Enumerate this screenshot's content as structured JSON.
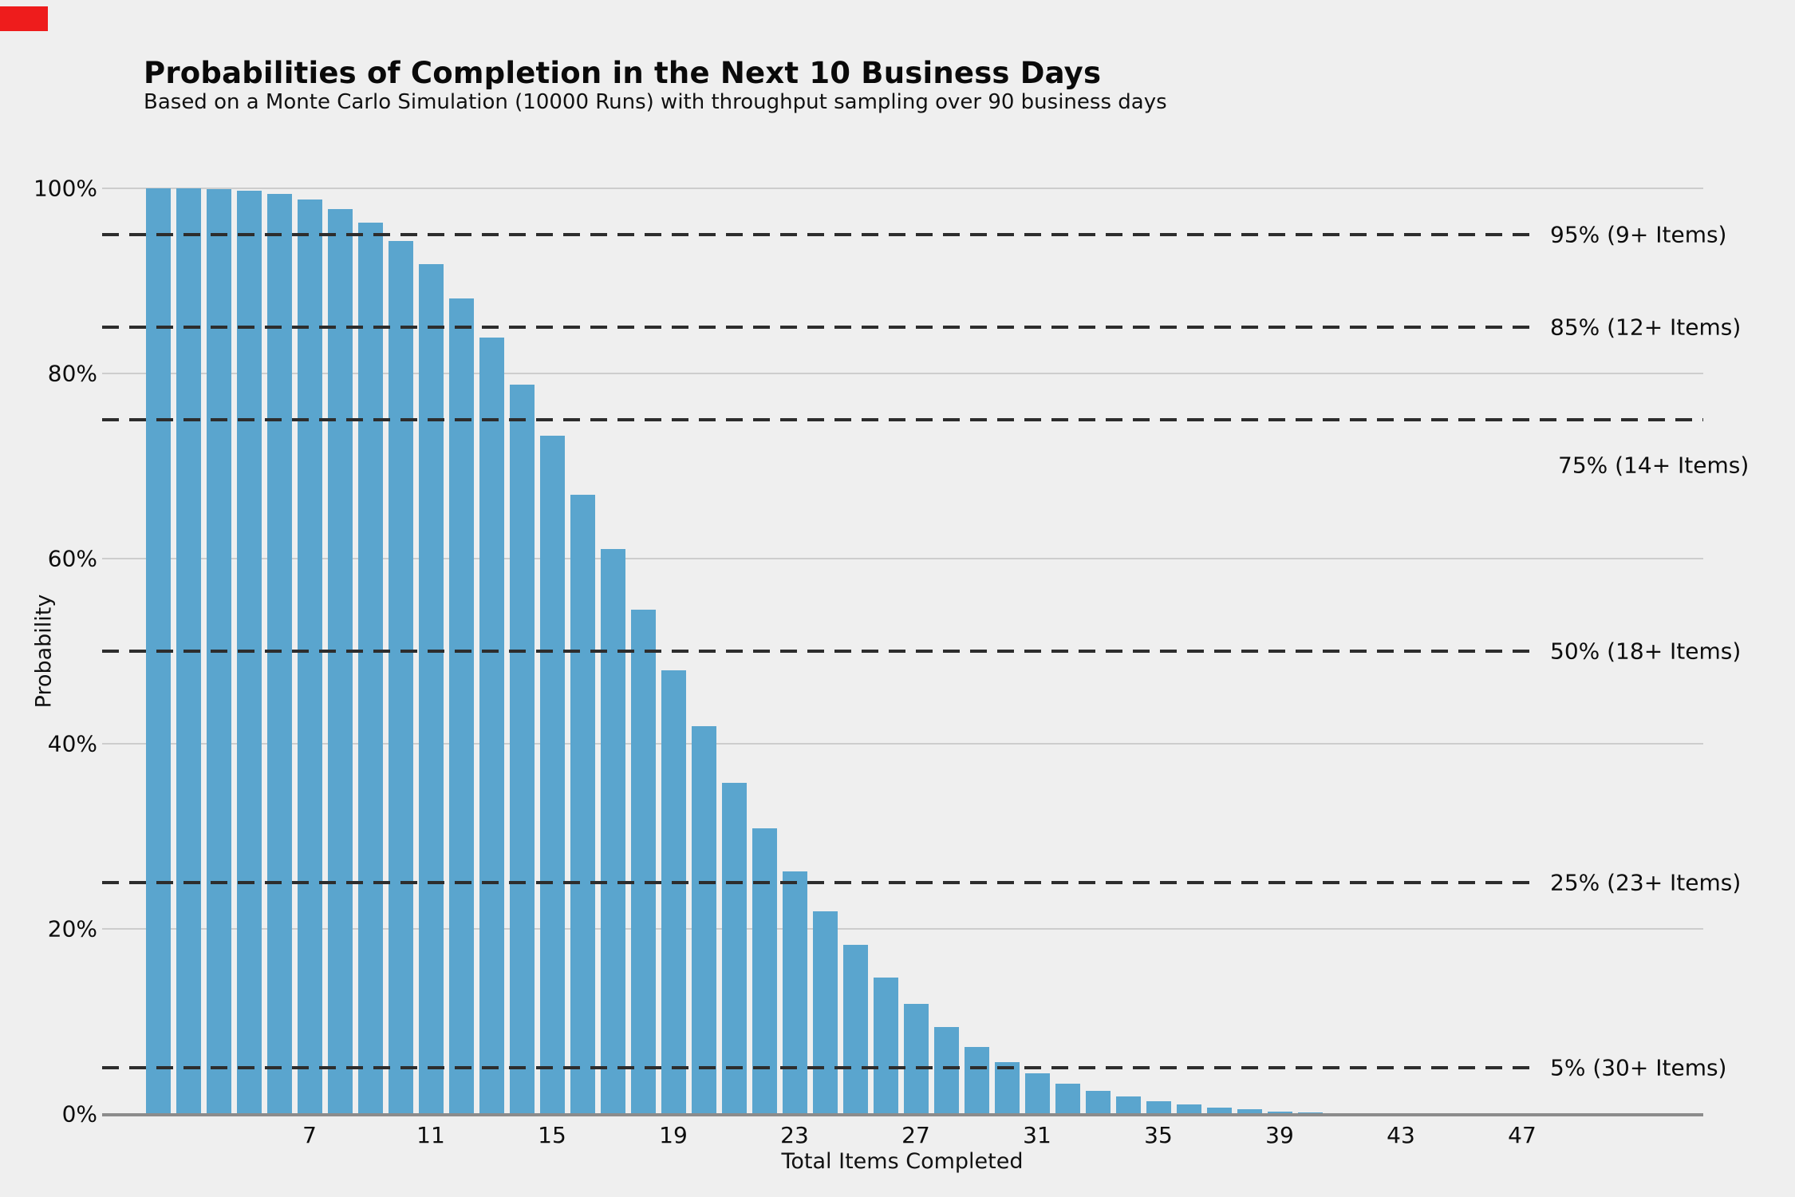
{
  "header": {
    "title": "Probabilities of Completion in the Next 10 Business Days",
    "subtitle": "Based on a Monte Carlo Simulation (10000 Runs) with throughput sampling over 90 business days"
  },
  "indicator": {
    "color": "#ee1c1c"
  },
  "chart_data": {
    "type": "bar",
    "title": "Probabilities of Completion in the Next 10 Business Days",
    "subtitle": "Based on a Monte Carlo Simulation (10000 Runs) with throughput sampling over 90 business days",
    "xlabel": "Total Items Completed",
    "ylabel": "Probability",
    "bar_color": "#5aa5ce",
    "grid": true,
    "legend": "none",
    "ylim": [
      0,
      100
    ],
    "x": [
      2,
      3,
      4,
      5,
      6,
      7,
      8,
      9,
      10,
      11,
      12,
      13,
      14,
      15,
      16,
      17,
      18,
      19,
      20,
      21,
      22,
      23,
      24,
      25,
      26,
      27,
      28,
      29,
      30,
      31,
      32,
      33,
      34,
      35,
      36,
      37,
      38,
      39,
      40,
      41
    ],
    "values": [
      100.0,
      100.0,
      99.9,
      99.7,
      99.4,
      98.8,
      97.8,
      96.3,
      94.3,
      91.8,
      88.1,
      83.9,
      78.8,
      73.3,
      66.9,
      61.0,
      54.5,
      47.9,
      41.9,
      35.8,
      30.9,
      26.2,
      21.9,
      18.3,
      14.7,
      11.9,
      9.4,
      7.2,
      5.6,
      4.4,
      3.3,
      2.5,
      1.9,
      1.4,
      1.0,
      0.7,
      0.5,
      0.3,
      0.2,
      0.1
    ],
    "x_ticks": [
      7,
      11,
      15,
      19,
      23,
      27,
      31,
      35,
      39,
      43,
      47
    ],
    "y_ticks": [
      {
        "value": 0,
        "label": "0%"
      },
      {
        "value": 20,
        "label": "20%"
      },
      {
        "value": 40,
        "label": "40%"
      },
      {
        "value": 60,
        "label": "60%"
      },
      {
        "value": 80,
        "label": "80%"
      },
      {
        "value": 100,
        "label": "100%"
      }
    ],
    "thresholds": [
      {
        "percent": 95,
        "label": "95% (9+ Items)",
        "extended": false,
        "label_below": false
      },
      {
        "percent": 85,
        "label": "85% (12+ Items)",
        "extended": false,
        "label_below": false
      },
      {
        "percent": 75,
        "label": "75% (14+ Items)",
        "extended": true,
        "label_below": true
      },
      {
        "percent": 50,
        "label": "50% (18+ Items)",
        "extended": false,
        "label_below": false
      },
      {
        "percent": 25,
        "label": "25% (23+ Items)",
        "extended": false,
        "label_below": false
      },
      {
        "percent": 5,
        "label": "5% (30+ Items)",
        "extended": false,
        "label_below": false
      }
    ],
    "colors": {
      "background": "#efefef",
      "gridline": "#cdcdcd",
      "threshold_line": "#2d2d2d",
      "axis_spine": "#8c8c8c",
      "text": "#0d0d0d"
    }
  }
}
